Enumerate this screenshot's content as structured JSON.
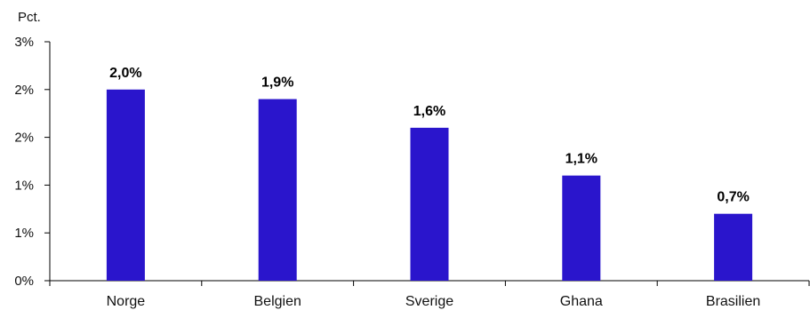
{
  "chart_data": {
    "type": "bar",
    "unit_label": "Pct.",
    "categories": [
      "Norge",
      "Belgien",
      "Sverige",
      "Ghana",
      "Brasilien"
    ],
    "values": [
      2.0,
      1.9,
      1.6,
      1.1,
      0.7
    ],
    "data_labels": [
      "2,0%",
      "1,9%",
      "1,6%",
      "1,1%",
      "0,7%"
    ],
    "ylim": [
      0,
      2.5
    ],
    "yticks": [
      0,
      0.5,
      1.0,
      1.5,
      2.0,
      2.5
    ],
    "ytick_labels": [
      "0%",
      "1%",
      "1%",
      "2%",
      "2%",
      "3%"
    ],
    "bar_color": "#2a15cc",
    "grid": false,
    "legend": "none"
  }
}
